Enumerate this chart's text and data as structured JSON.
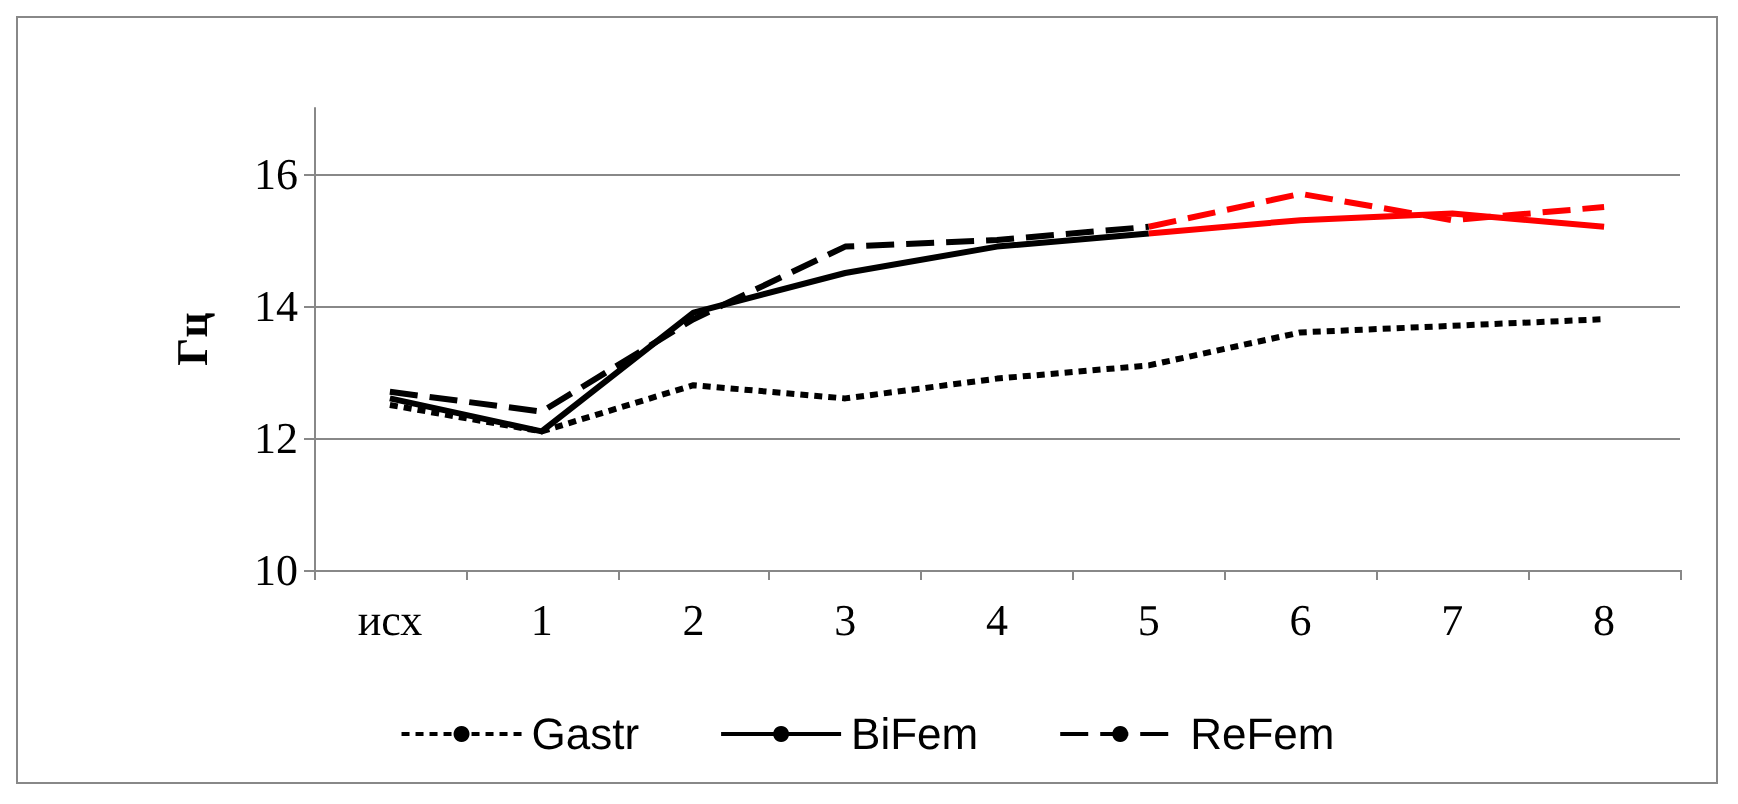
{
  "chart_data": {
    "type": "line",
    "ylabel": "Гц",
    "categories": [
      "исх",
      "1",
      "2",
      "3",
      "4",
      "5",
      "6",
      "7",
      "8"
    ],
    "series": [
      {
        "name": "Gastr",
        "color": "#000000",
        "line_style": "dotted",
        "values": [
          12.5,
          12.1,
          12.8,
          12.6,
          12.9,
          13.1,
          13.6,
          13.7,
          13.8
        ]
      },
      {
        "name": "BiFem",
        "color": "#000000",
        "line_style": "solid",
        "values": [
          12.6,
          12.1,
          13.9,
          14.5,
          14.9,
          15.1,
          null,
          null,
          null
        ]
      },
      {
        "name": "ReFem",
        "color": "#000000",
        "line_style": "dashed",
        "values": [
          12.7,
          12.4,
          13.8,
          14.9,
          15.0,
          15.2,
          null,
          null,
          null
        ]
      },
      {
        "color": "#ff0000",
        "line_style": "solid",
        "values": [
          null,
          null,
          null,
          null,
          null,
          15.1,
          15.3,
          15.4,
          15.2
        ]
      },
      {
        "color": "#ff0000",
        "line_style": "dashed",
        "values": [
          null,
          null,
          null,
          null,
          null,
          15.2,
          15.7,
          15.3,
          15.5
        ]
      }
    ],
    "ylim": [
      10,
      17
    ],
    "yticks": [
      10,
      12,
      14,
      16
    ],
    "grid": "y",
    "legend": "bottom",
    "marker": "none"
  }
}
